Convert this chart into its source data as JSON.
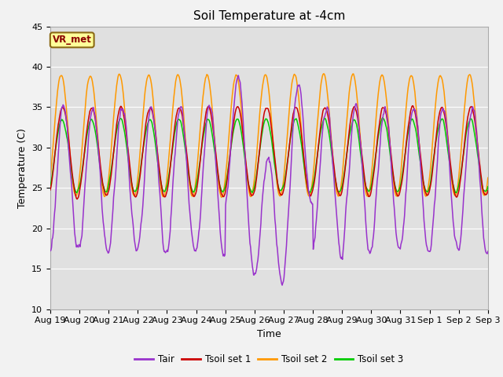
{
  "title": "Soil Temperature at -4cm",
  "xlabel": "Time",
  "ylabel": "Temperature (C)",
  "ylim": [
    10,
    45
  ],
  "yticks": [
    10,
    15,
    20,
    25,
    30,
    35,
    40,
    45
  ],
  "xtick_labels": [
    "Aug 19",
    "Aug 20",
    "Aug 21",
    "Aug 22",
    "Aug 23",
    "Aug 24",
    "Aug 25",
    "Aug 26",
    "Aug 27",
    "Aug 28",
    "Aug 29",
    "Aug 30",
    "Aug 31",
    "Sep 1",
    "Sep 2",
    "Sep 3"
  ],
  "colors": {
    "Tair": "#9933cc",
    "Tsoil_set1": "#cc0000",
    "Tsoil_set2": "#ff9900",
    "Tsoil_set3": "#00cc00"
  },
  "legend_labels": [
    "Tair",
    "Tsoil set 1",
    "Tsoil set 2",
    "Tsoil set 3"
  ],
  "vr_met_label": "VR_met",
  "fig_bg_color": "#f2f2f2",
  "plot_bg": "#e0e0e0",
  "grid_color": "#ffffff",
  "title_fontsize": 11,
  "axis_label_fontsize": 9,
  "tick_fontsize": 8,
  "n_days": 15
}
